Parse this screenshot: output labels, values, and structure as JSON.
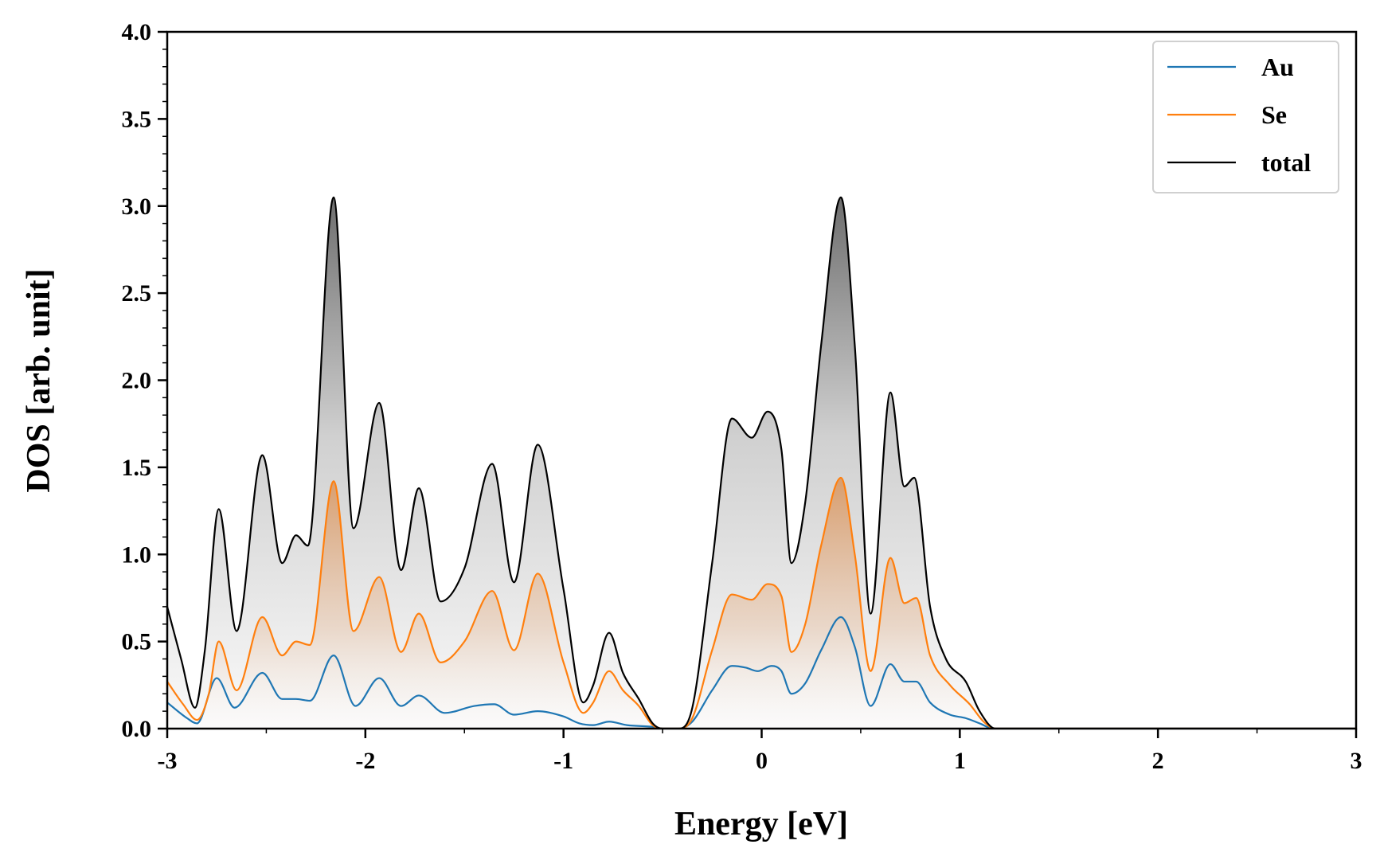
{
  "chart_data": {
    "type": "line",
    "title": "",
    "xlabel": "Energy [eV]",
    "ylabel": "DOS [arb. unit]",
    "xlim": [
      -3,
      3
    ],
    "ylim": [
      0,
      4.0
    ],
    "x_ticks": [
      -3,
      -2,
      -1,
      0,
      1,
      2,
      3
    ],
    "x_tick_labels": [
      "-3",
      "-2",
      "-1",
      "0",
      "1",
      "2",
      "3"
    ],
    "y_ticks": [
      0.0,
      0.5,
      1.0,
      1.5,
      2.0,
      2.5,
      3.0,
      3.5,
      4.0
    ],
    "y_tick_labels": [
      "0.0",
      "0.5",
      "1.0",
      "1.5",
      "2.0",
      "2.5",
      "3.0",
      "3.5",
      "4.0"
    ],
    "grid": false,
    "legend_position": "top-right",
    "series": [
      {
        "name": "Au",
        "color": "#1f77b4",
        "fill": false,
        "points": [
          [
            -3.0,
            0.15
          ],
          [
            -2.9,
            0.06
          ],
          [
            -2.85,
            0.03
          ],
          [
            -2.75,
            0.29
          ],
          [
            -2.66,
            0.12
          ],
          [
            -2.52,
            0.32
          ],
          [
            -2.42,
            0.17
          ],
          [
            -2.35,
            0.17
          ],
          [
            -2.28,
            0.16
          ],
          [
            -2.16,
            0.42
          ],
          [
            -2.05,
            0.13
          ],
          [
            -1.93,
            0.29
          ],
          [
            -1.82,
            0.13
          ],
          [
            -1.73,
            0.19
          ],
          [
            -1.6,
            0.09
          ],
          [
            -1.45,
            0.13
          ],
          [
            -1.35,
            0.14
          ],
          [
            -1.25,
            0.08
          ],
          [
            -1.13,
            0.1
          ],
          [
            -1.0,
            0.07
          ],
          [
            -0.92,
            0.03
          ],
          [
            -0.85,
            0.02
          ],
          [
            -0.77,
            0.04
          ],
          [
            -0.68,
            0.02
          ],
          [
            -0.55,
            0.01
          ],
          [
            -0.5,
            0.0
          ],
          [
            -0.42,
            0.0
          ],
          [
            -0.35,
            0.04
          ],
          [
            -0.25,
            0.22
          ],
          [
            -0.15,
            0.36
          ],
          [
            -0.08,
            0.35
          ],
          [
            -0.02,
            0.33
          ],
          [
            0.05,
            0.36
          ],
          [
            0.1,
            0.33
          ],
          [
            0.15,
            0.2
          ],
          [
            0.22,
            0.26
          ],
          [
            0.3,
            0.45
          ],
          [
            0.4,
            0.64
          ],
          [
            0.47,
            0.47
          ],
          [
            0.55,
            0.13
          ],
          [
            0.65,
            0.37
          ],
          [
            0.72,
            0.27
          ],
          [
            0.78,
            0.27
          ],
          [
            0.85,
            0.15
          ],
          [
            0.95,
            0.08
          ],
          [
            1.03,
            0.06
          ],
          [
            1.1,
            0.03
          ],
          [
            1.17,
            0.0
          ],
          [
            3.0,
            0.0
          ]
        ]
      },
      {
        "name": "Se",
        "color": "#ff7f0e",
        "fill": true,
        "points": [
          [
            -3.0,
            0.27
          ],
          [
            -2.92,
            0.14
          ],
          [
            -2.85,
            0.05
          ],
          [
            -2.79,
            0.2
          ],
          [
            -2.74,
            0.5
          ],
          [
            -2.65,
            0.22
          ],
          [
            -2.52,
            0.64
          ],
          [
            -2.42,
            0.42
          ],
          [
            -2.35,
            0.5
          ],
          [
            -2.28,
            0.48
          ],
          [
            -2.16,
            1.42
          ],
          [
            -2.06,
            0.56
          ],
          [
            -1.93,
            0.87
          ],
          [
            -1.82,
            0.44
          ],
          [
            -1.73,
            0.66
          ],
          [
            -1.62,
            0.38
          ],
          [
            -1.5,
            0.5
          ],
          [
            -1.36,
            0.79
          ],
          [
            -1.25,
            0.45
          ],
          [
            -1.13,
            0.89
          ],
          [
            -1.0,
            0.38
          ],
          [
            -0.9,
            0.09
          ],
          [
            -0.85,
            0.15
          ],
          [
            -0.77,
            0.33
          ],
          [
            -0.7,
            0.22
          ],
          [
            -0.62,
            0.13
          ],
          [
            -0.55,
            0.02
          ],
          [
            -0.5,
            0.0
          ],
          [
            -0.42,
            0.0
          ],
          [
            -0.35,
            0.06
          ],
          [
            -0.25,
            0.45
          ],
          [
            -0.15,
            0.77
          ],
          [
            -0.05,
            0.74
          ],
          [
            0.03,
            0.83
          ],
          [
            0.1,
            0.76
          ],
          [
            0.15,
            0.44
          ],
          [
            0.22,
            0.6
          ],
          [
            0.3,
            1.05
          ],
          [
            0.4,
            1.44
          ],
          [
            0.47,
            1.0
          ],
          [
            0.55,
            0.33
          ],
          [
            0.65,
            0.98
          ],
          [
            0.72,
            0.72
          ],
          [
            0.78,
            0.75
          ],
          [
            0.85,
            0.42
          ],
          [
            0.95,
            0.25
          ],
          [
            1.05,
            0.14
          ],
          [
            1.12,
            0.04
          ],
          [
            1.18,
            0.0
          ],
          [
            3.0,
            0.0
          ]
        ]
      },
      {
        "name": "total",
        "color": "#000000",
        "fill": true,
        "points": [
          [
            -3.0,
            0.7
          ],
          [
            -2.93,
            0.4
          ],
          [
            -2.86,
            0.12
          ],
          [
            -2.81,
            0.45
          ],
          [
            -2.74,
            1.26
          ],
          [
            -2.65,
            0.56
          ],
          [
            -2.52,
            1.57
          ],
          [
            -2.42,
            0.95
          ],
          [
            -2.35,
            1.11
          ],
          [
            -2.29,
            1.05
          ],
          [
            -2.16,
            3.05
          ],
          [
            -2.06,
            1.15
          ],
          [
            -1.93,
            1.87
          ],
          [
            -1.82,
            0.91
          ],
          [
            -1.73,
            1.38
          ],
          [
            -1.62,
            0.73
          ],
          [
            -1.5,
            0.92
          ],
          [
            -1.36,
            1.52
          ],
          [
            -1.25,
            0.84
          ],
          [
            -1.13,
            1.63
          ],
          [
            -1.0,
            0.8
          ],
          [
            -0.9,
            0.15
          ],
          [
            -0.85,
            0.25
          ],
          [
            -0.77,
            0.55
          ],
          [
            -0.7,
            0.32
          ],
          [
            -0.62,
            0.17
          ],
          [
            -0.55,
            0.03
          ],
          [
            -0.5,
            0.0
          ],
          [
            -0.42,
            0.0
          ],
          [
            -0.35,
            0.12
          ],
          [
            -0.25,
            0.95
          ],
          [
            -0.15,
            1.78
          ],
          [
            -0.05,
            1.67
          ],
          [
            0.03,
            1.82
          ],
          [
            0.1,
            1.6
          ],
          [
            0.15,
            0.95
          ],
          [
            0.22,
            1.3
          ],
          [
            0.3,
            2.2
          ],
          [
            0.4,
            3.05
          ],
          [
            0.47,
            2.2
          ],
          [
            0.55,
            0.66
          ],
          [
            0.65,
            1.93
          ],
          [
            0.72,
            1.39
          ],
          [
            0.77,
            1.44
          ],
          [
            0.85,
            0.7
          ],
          [
            0.93,
            0.4
          ],
          [
            1.03,
            0.27
          ],
          [
            1.1,
            0.1
          ],
          [
            1.18,
            0.0
          ],
          [
            3.0,
            0.0
          ]
        ]
      }
    ]
  }
}
